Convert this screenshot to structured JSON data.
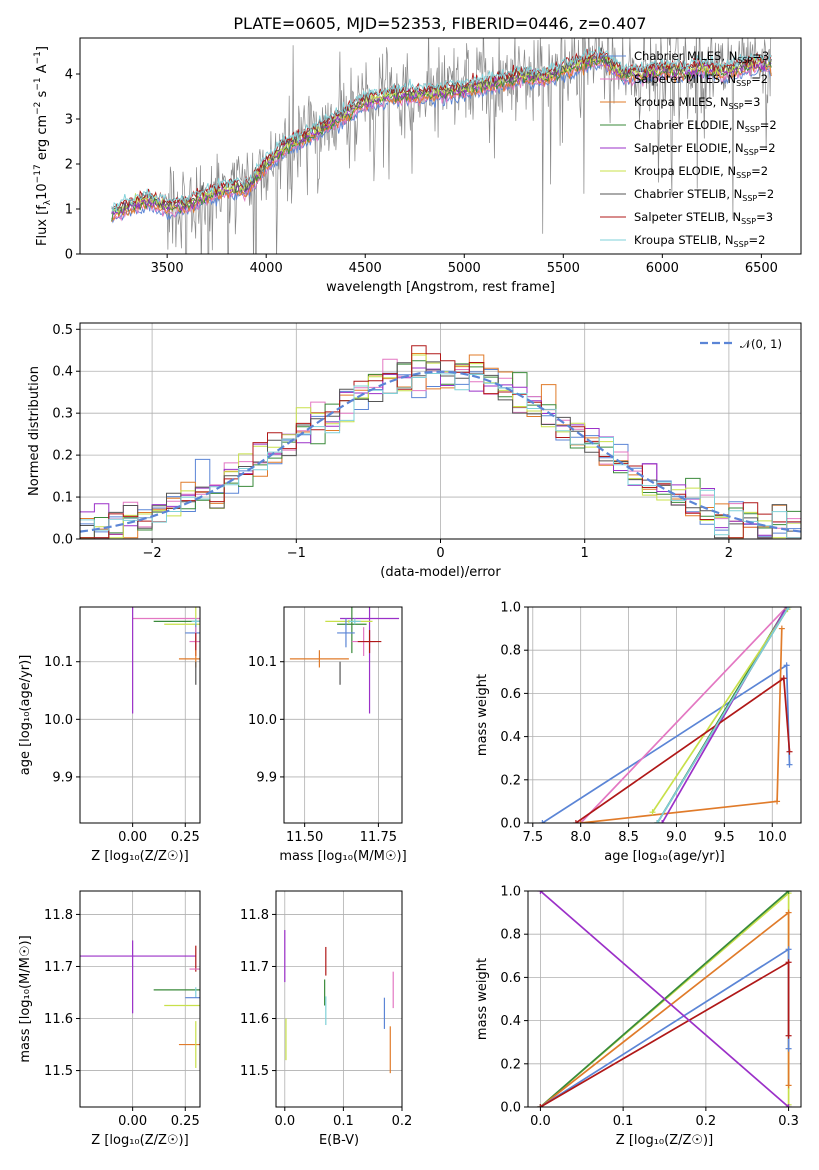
{
  "chart_data": [
    {
      "id": "spectrum",
      "type": "line",
      "title": "PLATE=0605, MJD=52353, FIBERID=0446, z=0.407",
      "xlabel": "wavelength [Angstrom, rest frame]",
      "ylabel_parts": [
        "Flux [f",
        "λ",
        "10",
        "−17",
        " erg cm",
        "−2",
        " s",
        "−1",
        " A",
        "−1",
        "]"
      ],
      "xlim": [
        3060,
        6700
      ],
      "ylim": [
        0,
        4.8
      ],
      "xticks": [
        3500,
        4000,
        4500,
        5000,
        5500,
        6000,
        6500
      ],
      "yticks": [
        0,
        1,
        2,
        3,
        4
      ],
      "grid": false,
      "legend_position": "top-right",
      "data_curve": {
        "x": [
          3220,
          3300,
          3400,
          3500,
          3600,
          3700,
          3800,
          3900,
          4000,
          4100,
          4200,
          4300,
          4400,
          4500,
          4600,
          4700,
          4800,
          4900,
          5000,
          5100,
          5200,
          5300,
          5400,
          5500,
          5600,
          5700,
          5800,
          5900,
          6000,
          6100,
          6200,
          6300,
          6400,
          6500,
          6550
        ],
        "y": [
          0.9,
          1.05,
          1.2,
          1.05,
          1.1,
          1.3,
          1.45,
          1.45,
          2.0,
          2.4,
          2.6,
          2.85,
          3.1,
          3.4,
          3.5,
          3.55,
          3.55,
          3.6,
          3.65,
          3.75,
          3.85,
          3.95,
          3.9,
          4.1,
          4.25,
          4.35,
          4.0,
          4.0,
          4.1,
          4.05,
          4.15,
          4.05,
          4.15,
          4.25,
          4.2
        ]
      },
      "data_noise_start": 3500,
      "series": [
        {
          "name": "Chabrier MILES, N",
          "sub": "SSP",
          "suffix": "=3",
          "color": "#5b85d6"
        },
        {
          "name": "Salpeter MILES, N",
          "sub": "SSP",
          "suffix": "=2",
          "color": "#e377c2"
        },
        {
          "name": "Kroupa MILES, N",
          "sub": "SSP",
          "suffix": "=3",
          "color": "#e07b2a"
        },
        {
          "name": "Chabrier ELODIE, N",
          "sub": "SSP",
          "suffix": "=2",
          "color": "#3a8a3a"
        },
        {
          "name": "Salpeter ELODIE, N",
          "sub": "SSP",
          "suffix": "=2",
          "color": "#9b30c8"
        },
        {
          "name": "Kroupa ELODIE, N",
          "sub": "SSP",
          "suffix": "=2",
          "color": "#c8e04a"
        },
        {
          "name": "Chabrier STELIB, N",
          "sub": "SSP",
          "suffix": "=2",
          "color": "#555555"
        },
        {
          "name": "Salpeter STELIB, N",
          "sub": "SSP",
          "suffix": "=3",
          "color": "#b01818"
        },
        {
          "name": "Kroupa STELIB, N",
          "sub": "SSP",
          "suffix": "=2",
          "color": "#7fd0d8"
        }
      ]
    },
    {
      "id": "residuals",
      "type": "line",
      "xlabel": "(data-model)/error",
      "ylabel": "Normed distribution",
      "xlim": [
        -2.5,
        2.5
      ],
      "ylim": [
        0,
        0.515
      ],
      "xticks": [
        -2,
        -1,
        0,
        1,
        2
      ],
      "yticks": [
        0.0,
        0.1,
        0.2,
        0.3,
        0.4,
        0.5
      ],
      "grid": true,
      "legend_position": "top-right",
      "reference_label": "𝒩(0, 1)",
      "reference_color": "#5b85d6",
      "bin_width": 0.1
    },
    {
      "id": "age_vs_Z",
      "type": "scatter",
      "ylabel": "age  [log₁₀(age/yr)]",
      "xlabel": "Z [log₁₀(Z/Z☉)]",
      "xlim": [
        -0.25,
        0.32
      ],
      "ylim": [
        9.82,
        10.195
      ],
      "xticks": [
        0.0,
        0.25
      ],
      "xticklabels": [
        "0.00",
        "0.25"
      ],
      "yticks": [
        9.9,
        10.0,
        10.1
      ],
      "grid": true,
      "points": [
        {
          "x": 0.3,
          "y": 10.175,
          "ex": 0.3,
          "ey": 0.0,
          "color": "#e377c2"
        },
        {
          "x": 0.0,
          "y": 10.175,
          "ex": 0.0,
          "ey": 0.33,
          "color": "#9b30c8"
        },
        {
          "x": 0.3,
          "y": 10.17,
          "ex": 0.2,
          "ey": 0.005,
          "color": "#3a8a3a"
        },
        {
          "x": 0.3,
          "y": 10.165,
          "ex": 0.15,
          "ey": 0.1,
          "color": "#c8e04a"
        },
        {
          "x": 0.3,
          "y": 10.15,
          "ex": 0.05,
          "ey": 0.05,
          "color": "#5b85d6"
        },
        {
          "x": 0.3,
          "y": 10.135,
          "ex": 0.03,
          "ey": 0.05,
          "color": "#e377c2"
        },
        {
          "x": 0.3,
          "y": 10.13,
          "ex": 0.0,
          "ey": 0.04,
          "color": "#b01818"
        },
        {
          "x": 0.3,
          "y": 10.105,
          "ex": 0.08,
          "ey": 0.03,
          "color": "#e07b2a"
        },
        {
          "x": 0.3,
          "y": 10.08,
          "ex": 0.0,
          "ey": 0.04,
          "color": "#555555"
        },
        {
          "x": 0.3,
          "y": 10.17,
          "ex": 0.02,
          "ey": 0.01,
          "color": "#7fd0d8"
        }
      ]
    },
    {
      "id": "age_vs_mass",
      "type": "scatter",
      "xlabel": "mass [log₁₀(M/M☉)]",
      "xlim": [
        11.43,
        11.83
      ],
      "ylim": [
        9.82,
        10.195
      ],
      "xticks": [
        11.5,
        11.75
      ],
      "xticklabels": [
        "11.50",
        "11.75"
      ],
      "yticks": [
        9.9,
        10.0,
        10.1
      ],
      "grid": true,
      "points": [
        {
          "x": 11.72,
          "y": 10.175,
          "ex": 0.1,
          "ey": 0.33,
          "color": "#9b30c8"
        },
        {
          "x": 11.65,
          "y": 10.17,
          "ex": 0.08,
          "ey": 0.005,
          "color": "#c8e04a"
        },
        {
          "x": 11.66,
          "y": 10.165,
          "ex": 0.05,
          "ey": 0.1,
          "color": "#3a8a3a"
        },
        {
          "x": 11.64,
          "y": 10.15,
          "ex": 0.03,
          "ey": 0.05,
          "color": "#5b85d6"
        },
        {
          "x": 11.7,
          "y": 10.135,
          "ex": 0.04,
          "ey": 0.05,
          "color": "#e377c2"
        },
        {
          "x": 11.72,
          "y": 10.135,
          "ex": 0.04,
          "ey": 0.04,
          "color": "#b01818"
        },
        {
          "x": 11.55,
          "y": 10.105,
          "ex": 0.1,
          "ey": 0.03,
          "color": "#e07b2a"
        },
        {
          "x": 11.62,
          "y": 10.08,
          "ex": 0.0,
          "ey": 0.04,
          "color": "#555555"
        },
        {
          "x": 11.67,
          "y": 10.17,
          "ex": 0.02,
          "ey": 0.01,
          "color": "#7fd0d8"
        }
      ]
    },
    {
      "id": "weight_vs_age",
      "type": "line",
      "xlabel": "age  [log₁₀(age/yr)]",
      "ylabel": "mass weight",
      "xlim": [
        7.45,
        10.3
      ],
      "ylim": [
        0,
        1
      ],
      "xticks": [
        7.5,
        8.0,
        8.5,
        9.0,
        9.5,
        10.0
      ],
      "xticklabels": [
        "7.5",
        "8.0",
        "8.5",
        "9.0",
        "9.5",
        "10.0"
      ],
      "yticks": [
        0.0,
        0.2,
        0.4,
        0.6,
        0.8,
        1.0
      ],
      "grid": true,
      "series": [
        {
          "color": "#5b85d6",
          "x": [
            7.6,
            10.15,
            10.18
          ],
          "y": [
            0.0,
            0.73,
            0.27
          ]
        },
        {
          "color": "#e377c2",
          "x": [
            8.0,
            10.15
          ],
          "y": [
            0.0,
            1.0
          ]
        },
        {
          "color": "#e07b2a",
          "x": [
            8.0,
            10.05,
            10.1
          ],
          "y": [
            0.0,
            0.1,
            0.9
          ]
        },
        {
          "color": "#3a8a3a",
          "x": [
            8.8,
            10.15
          ],
          "y": [
            0.0,
            1.0
          ]
        },
        {
          "color": "#9b30c8",
          "x": [
            8.85,
            10.15
          ],
          "y": [
            0.0,
            1.0
          ]
        },
        {
          "color": "#c8e04a",
          "x": [
            8.75,
            10.16
          ],
          "y": [
            0.05,
            0.99
          ]
        },
        {
          "color": "#555555",
          "x": [
            8.8,
            10.17
          ],
          "y": [
            0.0,
            1.0
          ]
        },
        {
          "color": "#b01818",
          "x": [
            7.95,
            10.12,
            10.18
          ],
          "y": [
            0.0,
            0.67,
            0.33
          ]
        },
        {
          "color": "#7fd0d8",
          "x": [
            8.8,
            10.17
          ],
          "y": [
            0.0,
            1.0
          ]
        }
      ]
    },
    {
      "id": "mass_vs_Z",
      "type": "scatter",
      "ylabel": "mass [log₁₀(M/M☉)]",
      "xlabel": "Z [log₁₀(Z/Z☉)]",
      "xlim": [
        -0.25,
        0.32
      ],
      "ylim": [
        11.43,
        11.845
      ],
      "xticks": [
        0.0,
        0.25
      ],
      "xticklabels": [
        "0.00",
        "0.25"
      ],
      "yticks": [
        11.5,
        11.6,
        11.7,
        11.8
      ],
      "grid": true,
      "points": [
        {
          "x": 0.0,
          "y": 11.72,
          "ex": 0.3,
          "ey": 0.0,
          "color": "#9b30c8"
        },
        {
          "x": 0.0,
          "y": 11.68,
          "ex": 0.0,
          "ey": 0.14,
          "color": "#9b30c8"
        },
        {
          "x": 0.3,
          "y": 11.715,
          "ex": 0.0,
          "ey": 0.05,
          "color": "#b01818"
        },
        {
          "x": 0.3,
          "y": 11.695,
          "ex": 0.03,
          "ey": 0.0,
          "color": "#e377c2"
        },
        {
          "x": 0.3,
          "y": 11.655,
          "ex": 0.2,
          "ey": 0.0,
          "color": "#3a8a3a"
        },
        {
          "x": 0.3,
          "y": 11.65,
          "ex": 0.0,
          "ey": 0.02,
          "color": "#7fd0d8"
        },
        {
          "x": 0.3,
          "y": 11.64,
          "ex": 0.05,
          "ey": 0.0,
          "color": "#5b85d6"
        },
        {
          "x": 0.3,
          "y": 11.625,
          "ex": 0.15,
          "ey": 0.0,
          "color": "#c8e04a"
        },
        {
          "x": 0.3,
          "y": 11.55,
          "ex": 0.08,
          "ey": 0.0,
          "color": "#e07b2a"
        },
        {
          "x": 0.3,
          "y": 11.55,
          "ex": 0.0,
          "ey": 0.09,
          "color": "#c8e04a"
        }
      ]
    },
    {
      "id": "mass_vs_ebv",
      "type": "scatter",
      "xlabel": "E(B-V)",
      "xlim": [
        -0.015,
        0.2
      ],
      "ylim": [
        11.43,
        11.845
      ],
      "xticks": [
        0.0,
        0.1,
        0.2
      ],
      "xticklabels": [
        "0.0",
        "0.1",
        "0.2"
      ],
      "yticks": [
        11.5,
        11.6,
        11.7,
        11.8
      ],
      "grid": true,
      "points": [
        {
          "x": 0.0,
          "y": 11.72,
          "ex": 0.0,
          "ey": 0.1,
          "color": "#9b30c8"
        },
        {
          "x": 0.002,
          "y": 11.56,
          "ex": 0.0,
          "ey": 0.08,
          "color": "#c8e04a"
        },
        {
          "x": 0.07,
          "y": 11.71,
          "ex": 0.0,
          "ey": 0.055,
          "color": "#b01818"
        },
        {
          "x": 0.068,
          "y": 11.65,
          "ex": 0.0,
          "ey": 0.05,
          "color": "#3a8a3a"
        },
        {
          "x": 0.07,
          "y": 11.615,
          "ex": 0.0,
          "ey": 0.055,
          "color": "#7fd0d8"
        },
        {
          "x": 0.17,
          "y": 11.61,
          "ex": 0.0,
          "ey": 0.06,
          "color": "#5b85d6"
        },
        {
          "x": 0.18,
          "y": 11.54,
          "ex": 0.0,
          "ey": 0.09,
          "color": "#e07b2a"
        },
        {
          "x": 0.185,
          "y": 11.655,
          "ex": 0.0,
          "ey": 0.07,
          "color": "#e377c2"
        }
      ]
    },
    {
      "id": "weight_vs_Z",
      "type": "line",
      "xlabel": "Z [log₁₀(Z/Z☉)]",
      "ylabel": "mass weight",
      "xlim": [
        -0.015,
        0.315
      ],
      "ylim": [
        0,
        1
      ],
      "xticks": [
        0.0,
        0.1,
        0.2,
        0.3
      ],
      "xticklabels": [
        "0.0",
        "0.1",
        "0.2",
        "0.3"
      ],
      "yticks": [
        0.0,
        0.2,
        0.4,
        0.6,
        0.8,
        1.0
      ],
      "grid": true,
      "series": [
        {
          "color": "#7fd0d8",
          "x": [
            0.0,
            0.3
          ],
          "y": [
            0.0,
            1.0
          ]
        },
        {
          "color": "#c8e04a",
          "x": [
            0.0,
            0.3,
            0.3
          ],
          "y": [
            0.0,
            0.99,
            0.01
          ]
        },
        {
          "color": "#3a8a3a",
          "x": [
            0.0,
            0.3
          ],
          "y": [
            0.0,
            1.0
          ]
        },
        {
          "color": "#e07b2a",
          "x": [
            0.0,
            0.3,
            0.3
          ],
          "y": [
            0.0,
            0.9,
            0.1
          ]
        },
        {
          "color": "#5b85d6",
          "x": [
            0.0,
            0.3,
            0.3
          ],
          "y": [
            0.0,
            0.73,
            0.27
          ]
        },
        {
          "color": "#b01818",
          "x": [
            0.0,
            0.3,
            0.3
          ],
          "y": [
            0.0,
            0.67,
            0.33
          ]
        },
        {
          "color": "#9b30c8",
          "x": [
            0.0,
            0.3
          ],
          "y": [
            1.0,
            0.0
          ]
        }
      ]
    }
  ]
}
